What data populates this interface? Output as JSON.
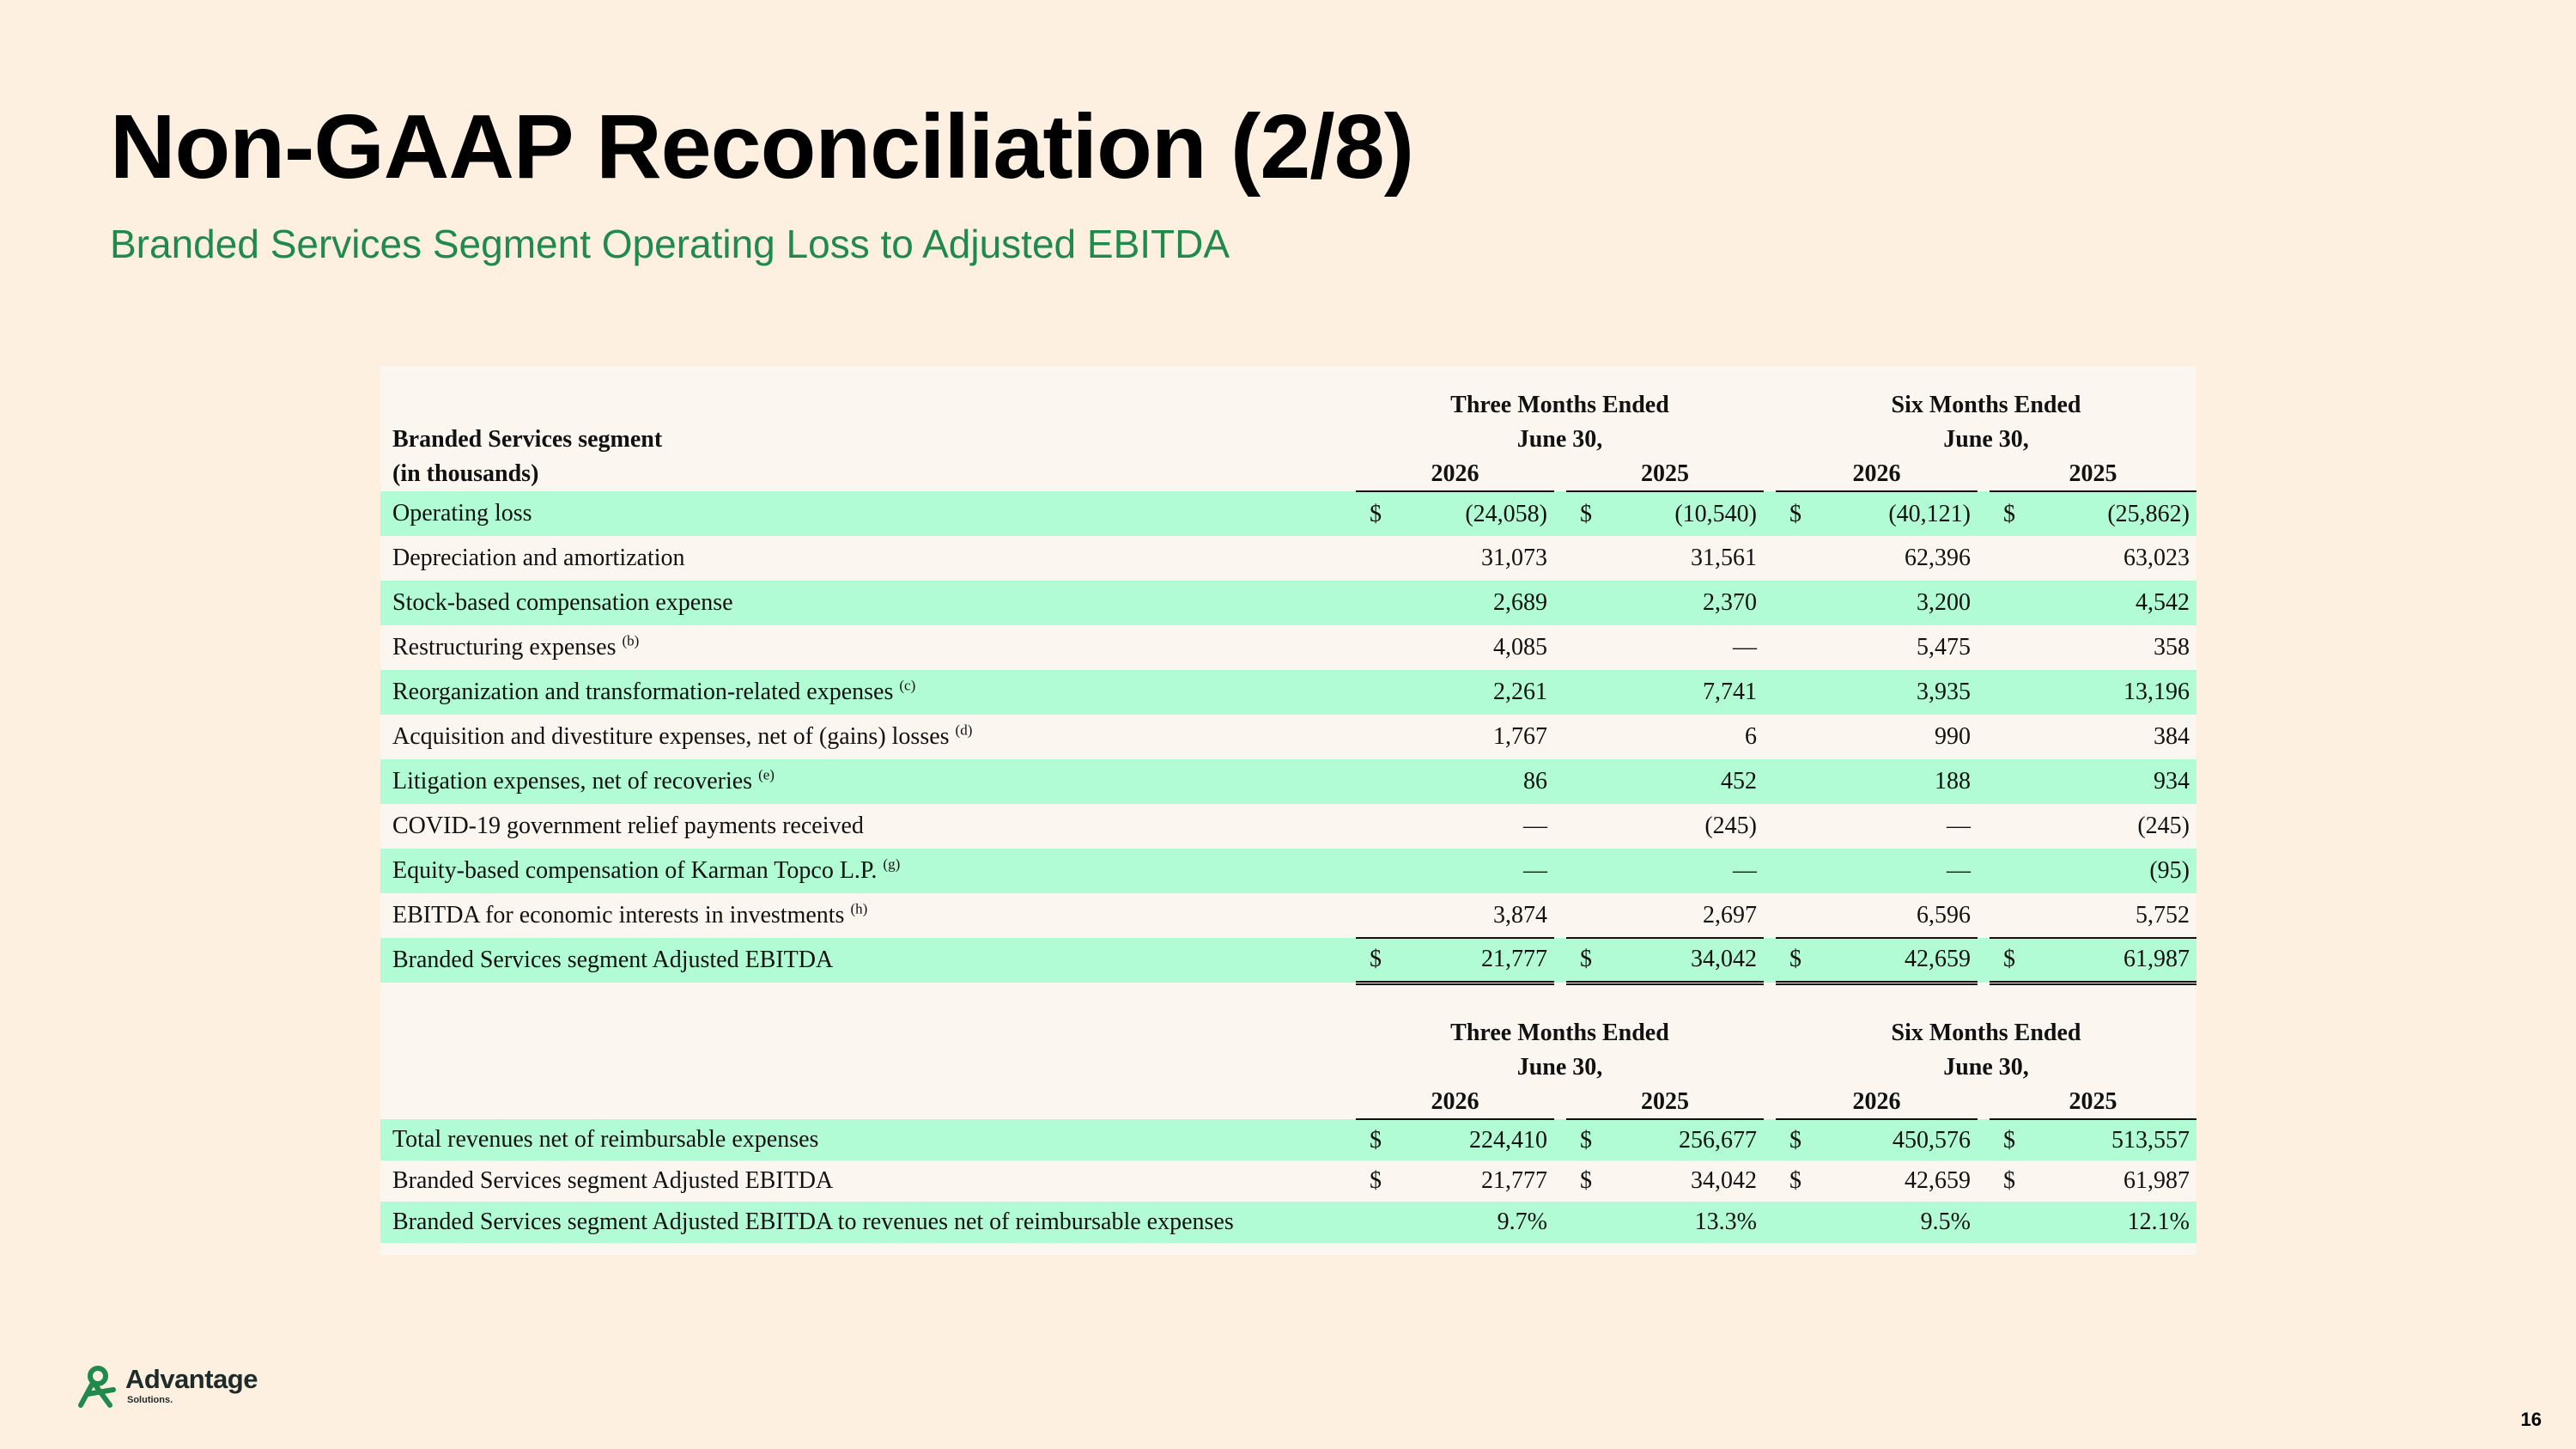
{
  "slide": {
    "title": "Non-GAAP Reconciliation (2/8)",
    "subtitle": "Branded Services Segment Operating Loss to Adjusted EBITDA",
    "page_number": "16"
  },
  "brand": {
    "name": "Advantage",
    "sub": "Solutions.",
    "icon": "advantage-logo-icon",
    "color": "#1f8a4c"
  },
  "colors": {
    "background": "#fef0e0",
    "row_highlight": "#b2fcd5",
    "subtitle": "#1f8a4c"
  },
  "table1": {
    "header": {
      "group1_line1": "Three Months Ended",
      "group1_line2": "June 30,",
      "group2_line1": "Six Months Ended",
      "group2_line2": "June 30,",
      "title": "Branded Services segment",
      "units": "(in thousands)",
      "years": [
        "2026",
        "2025",
        "2026",
        "2025"
      ]
    },
    "rows": [
      {
        "label": "Operating loss",
        "note": "",
        "currency": "$",
        "values": [
          "(24,058)",
          "(10,540)",
          "(40,121)",
          "(25,862)"
        ]
      },
      {
        "label": "Depreciation and amortization",
        "note": "",
        "currency": "",
        "values": [
          "31,073",
          "31,561",
          "62,396",
          "63,023"
        ]
      },
      {
        "label": "Stock-based compensation expense",
        "note": "",
        "currency": "",
        "values": [
          "2,689",
          "2,370",
          "3,200",
          "4,542"
        ]
      },
      {
        "label": "Restructuring expenses",
        "note": "(b)",
        "currency": "",
        "values": [
          "4,085",
          "—",
          "5,475",
          "358"
        ]
      },
      {
        "label": "Reorganization and transformation-related expenses",
        "note": "(c)",
        "currency": "",
        "values": [
          "2,261",
          "7,741",
          "3,935",
          "13,196"
        ]
      },
      {
        "label": "Acquisition and divestiture expenses, net of (gains) losses",
        "note": "(d)",
        "currency": "",
        "values": [
          "1,767",
          "6",
          "990",
          "384"
        ]
      },
      {
        "label": "Litigation expenses, net of recoveries",
        "note": "(e)",
        "currency": "",
        "values": [
          "86",
          "452",
          "188",
          "934"
        ]
      },
      {
        "label": "COVID-19 government relief payments received",
        "note": "",
        "currency": "",
        "values": [
          "—",
          "(245)",
          "—",
          "(245)"
        ]
      },
      {
        "label": "Equity-based compensation of Karman Topco L.P.",
        "note": "(g)",
        "currency": "",
        "values": [
          "—",
          "—",
          "—",
          "(95)"
        ]
      },
      {
        "label": "EBITDA for economic interests in investments",
        "note": "(h)",
        "currency": "",
        "values": [
          "3,874",
          "2,697",
          "6,596",
          "5,752"
        ]
      },
      {
        "label": "Branded Services segment Adjusted EBITDA",
        "note": "",
        "currency": "$",
        "values": [
          "21,777",
          "34,042",
          "42,659",
          "61,987"
        ]
      }
    ]
  },
  "table2": {
    "header": {
      "group1_line1": "Three Months Ended",
      "group1_line2": "June 30,",
      "group2_line1": "Six Months Ended",
      "group2_line2": "June 30,",
      "years": [
        "2026",
        "2025",
        "2026",
        "2025"
      ]
    },
    "rows": [
      {
        "label": "Total revenues net of reimbursable expenses",
        "currency": "$",
        "values": [
          "224,410",
          "256,677",
          "450,576",
          "513,557"
        ]
      },
      {
        "label": "Branded Services segment Adjusted EBITDA",
        "currency": "$",
        "values": [
          "21,777",
          "34,042",
          "42,659",
          "61,987"
        ]
      },
      {
        "label": "Branded Services segment Adjusted EBITDA to revenues net of reimbursable expenses",
        "currency": "",
        "values": [
          "9.7%",
          "13.3%",
          "9.5%",
          "12.1%"
        ]
      }
    ]
  }
}
